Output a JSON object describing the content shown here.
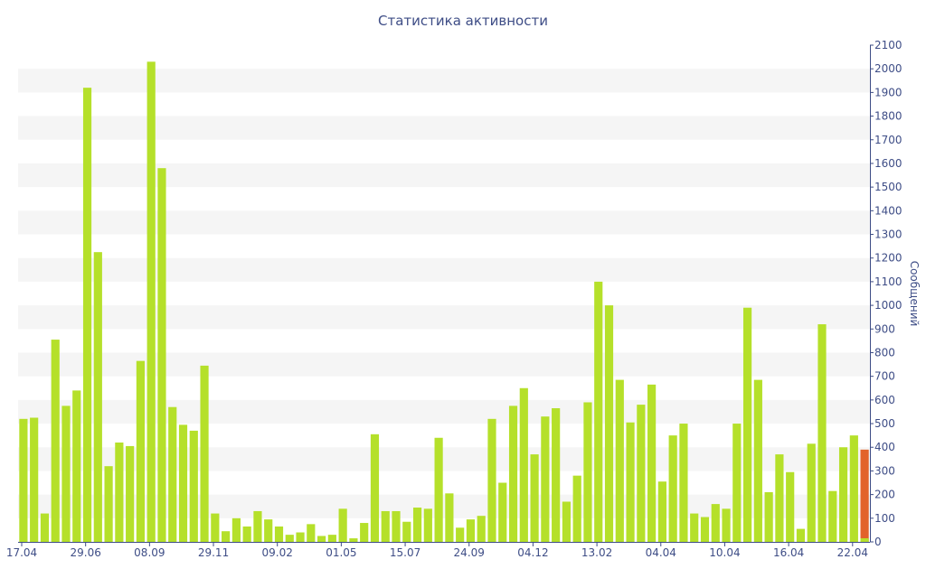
{
  "chart_data": {
    "type": "bar",
    "title": "Статистика активности",
    "ylabel": "Сообщений",
    "xlabel": "",
    "ylim": [
      0,
      2100
    ],
    "ytick_step": 100,
    "y_axis_side": "right",
    "grid": "alternating horizontal bands",
    "x_tick_labels": [
      "17.04",
      "29.06",
      "08.09",
      "29.11",
      "09.02",
      "01.05",
      "15.07",
      "24.09",
      "04.12",
      "13.02",
      "04.04",
      "10.04",
      "16.04",
      "22.04"
    ],
    "values": [
      520,
      525,
      120,
      855,
      575,
      640,
      1920,
      1225,
      320,
      420,
      405,
      765,
      2030,
      1580,
      570,
      495,
      470,
      745,
      120,
      45,
      100,
      65,
      130,
      95,
      65,
      30,
      40,
      75,
      25,
      30,
      140,
      15,
      80,
      455,
      130,
      130,
      85,
      145,
      140,
      440,
      205,
      60,
      95,
      110,
      520,
      250,
      575,
      650,
      370,
      530,
      565,
      170,
      280,
      590,
      1100,
      1000,
      685,
      505,
      580,
      665,
      255,
      450,
      500,
      120,
      105,
      160,
      140,
      500,
      990,
      685,
      210,
      370,
      295,
      55,
      415,
      920,
      215,
      400,
      450,
      390
    ],
    "series_colors": {
      "normal": "#b5e02a",
      "current": "#e2632a"
    },
    "band_color": "#f5f5f5",
    "axis_color": "#3e4d86"
  }
}
